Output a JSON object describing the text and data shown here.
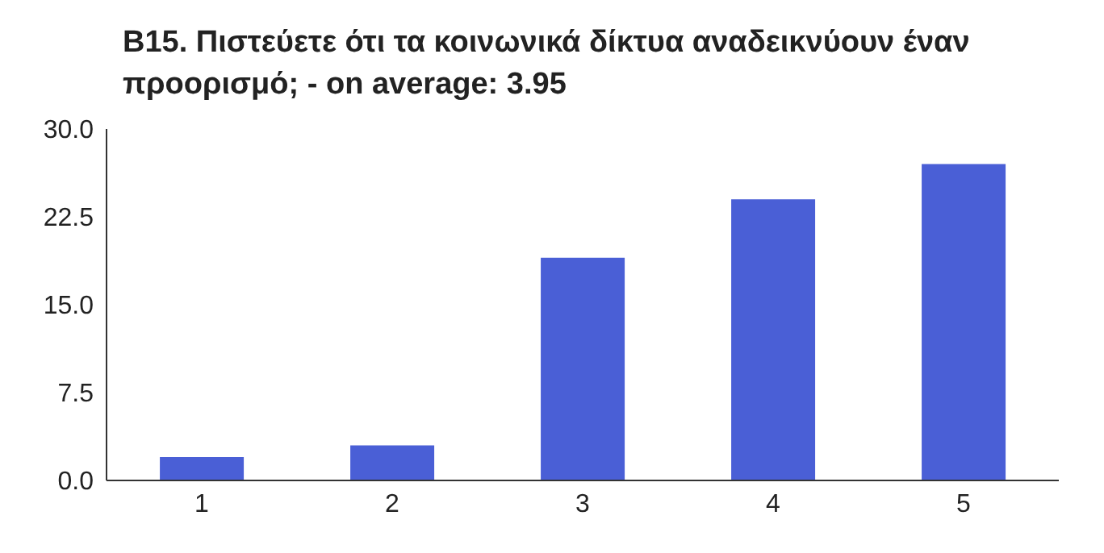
{
  "chart_data": {
    "type": "bar",
    "title": "B15. Πιστεύετε ότι τα κοινωνικά δίκτυα αναδεικνύουν έναν προορισμό; - on average: 3.95",
    "categories": [
      "1",
      "2",
      "3",
      "4",
      "5"
    ],
    "values": [
      2,
      3,
      19,
      24,
      27
    ],
    "color": "#4a5fd6",
    "ylim": [
      0,
      30
    ],
    "yticks": [
      {
        "value": 0,
        "label": "0.0"
      },
      {
        "value": 7.5,
        "label": "7.5"
      },
      {
        "value": 15,
        "label": "15.0"
      },
      {
        "value": 22.5,
        "label": "22.5"
      },
      {
        "value": 30,
        "label": "30.0"
      }
    ]
  }
}
